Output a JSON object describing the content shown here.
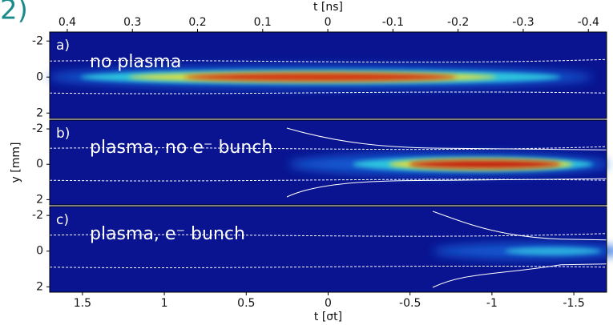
{
  "chart_data": [
    {
      "type": "heatmap",
      "label": "a)",
      "annotation": "no plasma",
      "x2label": "t [ns]",
      "x2lim": [
        0.427,
        -0.428
      ],
      "x2ticks": [
        0.4,
        0.3,
        0.2,
        0.1,
        0,
        -0.1,
        -0.2,
        -0.3,
        -0.4
      ],
      "ylim": [
        2.3,
        -2.5
      ],
      "yticks": [
        -2,
        0,
        2
      ]
    },
    {
      "type": "heatmap",
      "label": "b)",
      "annotation": "plasma, no e⁻ bunch",
      "ylabel": "y [mm]",
      "ylim": [
        2.3,
        -2.5
      ],
      "yticks": [
        -2,
        0,
        2
      ]
    },
    {
      "type": "heatmap",
      "label": "c)",
      "annotation": "plasma, e⁻ bunch",
      "xlabel": "t [σt]",
      "xlim": [
        1.7,
        -1.7
      ],
      "xticks": [
        1.5,
        1.0,
        0.5,
        0,
        -0.5,
        -1.0,
        -1.5
      ],
      "ylim": [
        2.3,
        -2.5
      ],
      "yticks": [
        -2,
        0,
        2
      ]
    }
  ]
}
